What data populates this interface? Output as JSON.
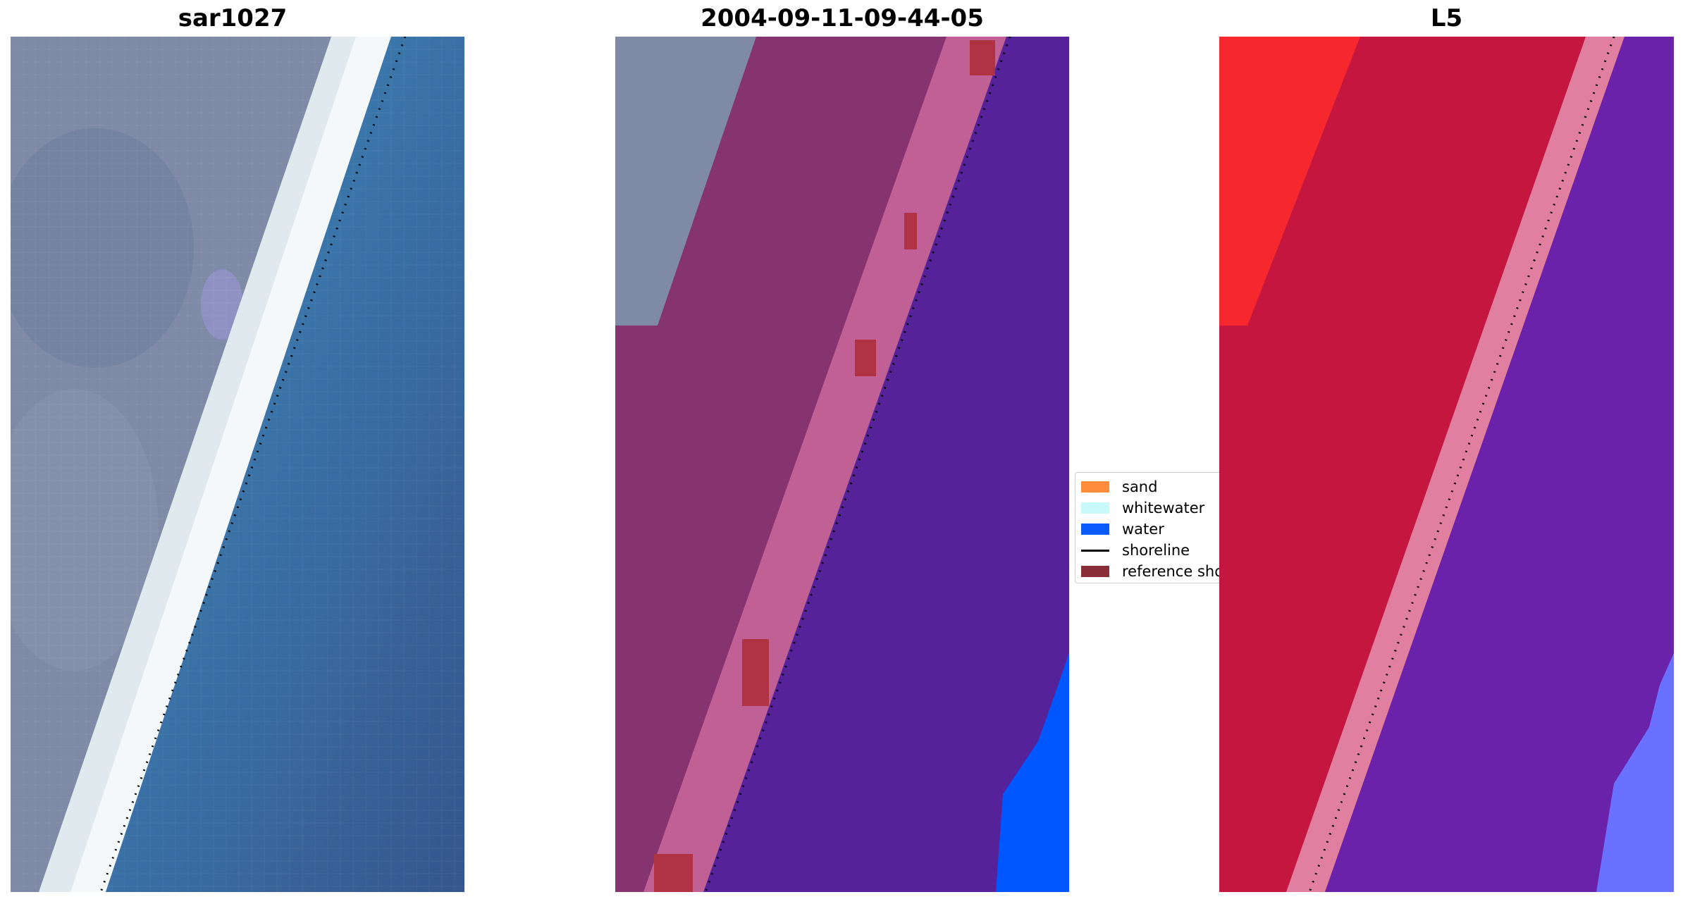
{
  "panels": [
    {
      "title": "sar1027"
    },
    {
      "title": "2004-09-11-09-44-05"
    },
    {
      "title": "L5"
    }
  ],
  "legend": {
    "items": [
      {
        "label": "sand",
        "color": "#ff8c3a",
        "kind": "patch"
      },
      {
        "label": "whitewater",
        "color": "#c8fafa",
        "kind": "patch"
      },
      {
        "label": "water",
        "color": "#0a5cff",
        "kind": "patch"
      },
      {
        "label": "shoreline",
        "color": "#000000",
        "kind": "line"
      },
      {
        "label": "reference shoreline",
        "color": "#8b2e3a",
        "kind": "patch"
      }
    ]
  },
  "colors": {
    "rgb_land": "#7f8aa6",
    "rgb_water": "#3d7fb3",
    "rgb_deep_water": "#3a5f98",
    "rgb_beach": "#f2f6f8",
    "class_land_overlay": "#86346f",
    "class_sand_edge": "#c06094",
    "class_water": "#55229a",
    "class_water_bright": "#0057ff",
    "class_reference": "#b03344",
    "index_land": "#c4163f",
    "index_land_bright": "#ff2a2a",
    "index_water": "#6a22aa",
    "index_edge": "#e07fa0",
    "index_water_bright": "#6a70ff"
  }
}
